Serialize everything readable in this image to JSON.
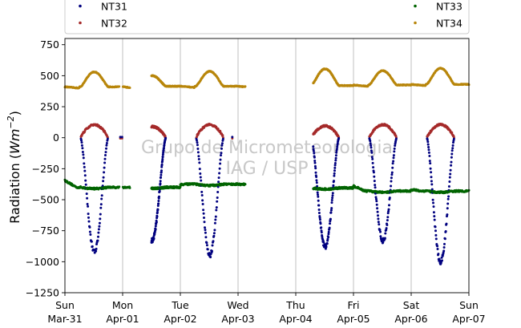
{
  "chart_data": {
    "type": "scatter",
    "ylabel": "Radiation (W m⁻²)",
    "ylabel_parts": {
      "prefix": "Radiation (",
      "unit": "Wm",
      "exponent": "−2",
      "suffix": ")"
    },
    "ylim": [
      -1250,
      800
    ],
    "yticks": [
      -1250,
      -1000,
      -750,
      -500,
      -250,
      0,
      250,
      500,
      750
    ],
    "ytick_labels": [
      "−1250",
      "−1000",
      "−750",
      "−500",
      "−250",
      "0",
      "250",
      "500",
      "750"
    ],
    "xlim": [
      "2019-03-31",
      "2019-04-07"
    ],
    "xticks": [
      {
        "date": "2019-03-31",
        "day": "Sun",
        "label": "Mar-31"
      },
      {
        "date": "2019-04-01",
        "day": "Mon",
        "label": "Apr-01"
      },
      {
        "date": "2019-04-02",
        "day": "Tue",
        "label": "Apr-02"
      },
      {
        "date": "2019-04-03",
        "day": "Wed",
        "label": "Apr-03"
      },
      {
        "date": "2019-04-04",
        "day": "Thu",
        "label": "Apr-04"
      },
      {
        "date": "2019-04-05",
        "day": "Fri",
        "label": "Apr-05"
      },
      {
        "date": "2019-04-06",
        "day": "Sat",
        "label": "Apr-06"
      },
      {
        "date": "2019-04-07",
        "day": "Sun",
        "label": "Apr-07"
      }
    ],
    "grid": "vertical",
    "legend": {
      "placement": "top",
      "columns": 2
    },
    "watermark": [
      "Grupo de Micrometeorologia",
      "IAG / USP"
    ],
    "days": [
      {
        "start": "2019-03-31 00:00",
        "end": "2019-04-01 03:00",
        "coverage": [
          [
            0.0,
            0.94
          ]
        ],
        "partial_points": [
          0.96,
          0.99
        ],
        "NT34": {
          "night": 410,
          "peak": 530
        },
        "NT32": {
          "peak": 110
        },
        "NT31": {
          "min": -920
        },
        "NT33": {
          "base": -400,
          "start": -345
        }
      },
      {
        "start": "2019-04-01 12:00",
        "end": "2019-04-02 00:00",
        "coverage": [
          [
            0.5,
            1.0
          ]
        ],
        "NT34": {
          "night": 415,
          "peak": 500
        },
        "NT32": {
          "peak": 95
        },
        "NT31": {
          "min": -830
        },
        "NT33": {
          "base": -400,
          "start": -400
        }
      },
      {
        "start": "2019-04-02 00:00",
        "end": "2019-04-03 03:00",
        "coverage": [
          [
            0.0,
            0.99
          ]
        ],
        "partial_points": [
          0.9
        ],
        "NT34": {
          "night": 415,
          "peak": 535
        },
        "NT32": {
          "peak": 110
        },
        "NT31": {
          "min": -950
        },
        "NT33": {
          "base": -375,
          "start": -375
        }
      },
      {
        "start": "2019-04-04 06:00",
        "end": "2019-04-05 00:00",
        "coverage": [
          [
            0.3,
            1.0
          ]
        ],
        "NT34": {
          "night": 420,
          "peak": 555
        },
        "NT32": {
          "peak": 100
        },
        "NT31": {
          "min": -880
        },
        "NT33": {
          "base": -405,
          "start": -370
        }
      },
      {
        "start": "2019-04-05 00:00",
        "end": "2019-04-06 00:00",
        "coverage": [
          [
            0.0,
            1.0
          ]
        ],
        "NT34": {
          "night": 425,
          "peak": 540
        },
        "NT32": {
          "peak": 110
        },
        "NT31": {
          "min": -830
        },
        "NT33": {
          "base": -430,
          "start": -390
        }
      },
      {
        "start": "2019-04-06 00:00",
        "end": "2019-04-07 00:00",
        "coverage": [
          [
            0.0,
            1.0
          ]
        ],
        "NT34": {
          "night": 430,
          "peak": 560
        },
        "NT32": {
          "peak": 110
        },
        "NT31": {
          "min": -1000
        },
        "NT33": {
          "base": -430,
          "start": -420
        }
      }
    ],
    "series": [
      {
        "name": "NT31",
        "color": "#00007f",
        "description": "outgoing shortwave / net negative daytime dip",
        "approx_daily_minimum": [
          -920,
          -830,
          -950,
          -880,
          -830,
          -1000
        ]
      },
      {
        "name": "NT32",
        "color": "#a52a2a",
        "approx_daily_peak": [
          110,
          95,
          110,
          100,
          110,
          110
        ]
      },
      {
        "name": "NT33",
        "color": "#006400",
        "approx_range": [
          -450,
          -345
        ]
      },
      {
        "name": "NT34",
        "color": "#b8860b",
        "approx_range": [
          395,
          560
        ]
      }
    ]
  }
}
